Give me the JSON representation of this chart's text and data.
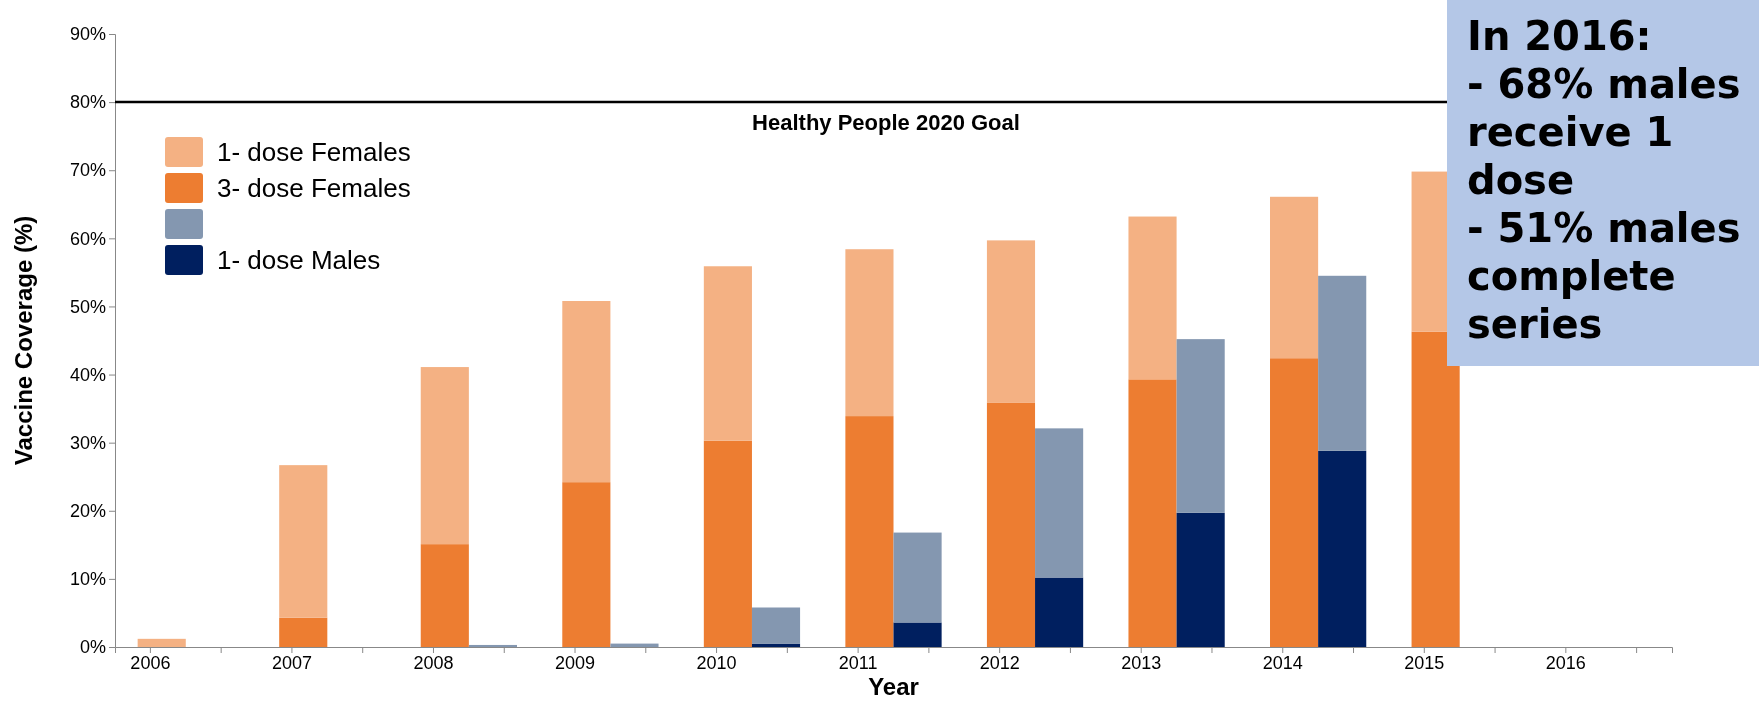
{
  "chart_data": {
    "type": "bar",
    "stacked": true,
    "xlabel": "Year",
    "ylabel": "Vaccine Coverage (%)",
    "categories": [
      "2006",
      null,
      "2007",
      null,
      "2008",
      null,
      "2009",
      null,
      "2010",
      null,
      "2011",
      null,
      "2012",
      null,
      "2013",
      null,
      "2014",
      null,
      "2015",
      null,
      "2016",
      null
    ],
    "ylim": [
      0,
      90
    ],
    "yticks": [
      {
        "value": 0,
        "label": "0%"
      },
      {
        "value": 10,
        "label": "10%"
      },
      {
        "value": 20,
        "label": "20%"
      },
      {
        "value": 30,
        "label": "30%"
      },
      {
        "value": 40,
        "label": "40%"
      },
      {
        "value": 50,
        "label": "50%"
      },
      {
        "value": 60,
        "label": "60%"
      },
      {
        "value": 70,
        "label": "70%"
      },
      {
        "value": 80,
        "label": "80%"
      },
      {
        "value": 90,
        "label": "90%"
      }
    ],
    "legend": "top left",
    "series": [
      {
        "name": "3- dose Females",
        "color": "#ed7d31",
        "values": [
          0,
          null,
          4.3,
          null,
          15.1,
          null,
          24.2,
          null,
          30.3,
          null,
          33.9,
          null,
          35.9,
          null,
          39.3,
          null,
          42.4,
          null,
          46.3,
          null,
          null,
          null
        ]
      },
      {
        "name": "1- dose Females",
        "color": "#f4b183",
        "values": [
          1.2,
          null,
          22.4,
          null,
          26.0,
          null,
          26.6,
          null,
          25.6,
          null,
          24.5,
          null,
          23.8,
          null,
          23.9,
          null,
          23.7,
          null,
          23.5,
          null,
          null,
          null
        ]
      },
      {
        "name": "1- dose Males",
        "color": "#001f5f",
        "values": [
          null,
          0,
          null,
          0,
          null,
          0,
          null,
          0,
          null,
          0.5,
          null,
          3.6,
          null,
          10.2,
          null,
          19.7,
          null,
          28.8,
          null,
          null,
          null,
          null
        ]
      },
      {
        "color": "#8497b0",
        "values": [
          null,
          0,
          null,
          0,
          null,
          0.3,
          null,
          0.5,
          null,
          5.3,
          null,
          13.2,
          null,
          21.9,
          null,
          25.5,
          null,
          25.7,
          null,
          null,
          null,
          null
        ]
      }
    ],
    "ref_lines": [
      {
        "axis": "y",
        "value": 80,
        "label": "Healthy People 2020 Goal",
        "color": "#000000"
      }
    ],
    "annotations": [
      "In 2016:\n- 68% males\nreceive 1\ndose\n- 51% males\ncomplete\nseries"
    ]
  }
}
